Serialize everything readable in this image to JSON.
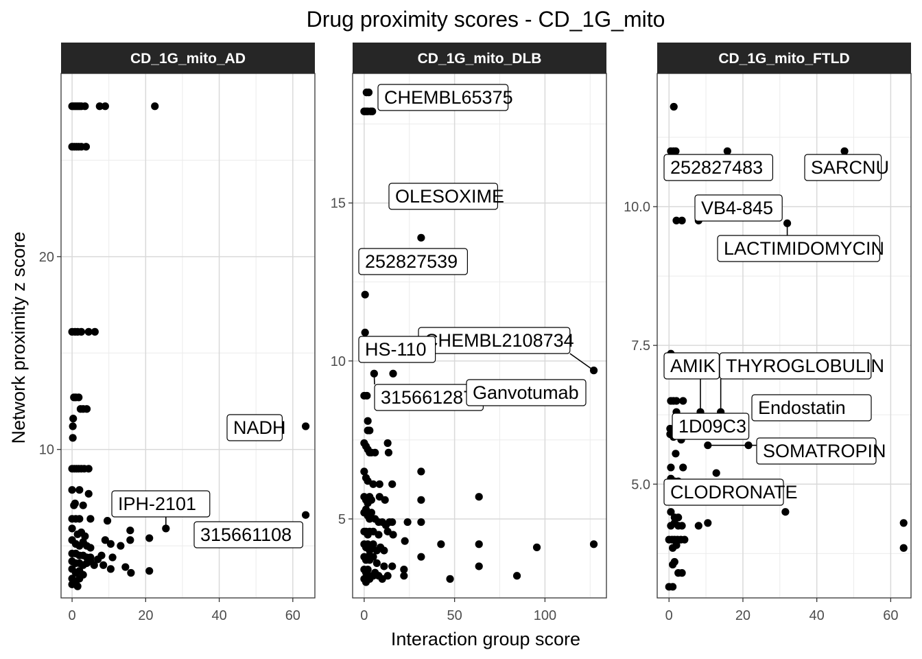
{
  "chart_data": {
    "type": "scatter",
    "title": "Drug proximity scores - CD_1G_mito",
    "xlabel": "Interaction group score",
    "ylabel": "Network proximity z score",
    "grid": true,
    "panels": [
      {
        "name": "CD_1G_mito_AD",
        "xlim": [
          -3,
          66
        ],
        "ylim": [
          2.3,
          29.5
        ],
        "xticks": [
          0,
          20,
          40,
          60
        ],
        "yticks": [
          10,
          20
        ],
        "points": [
          [
            0,
            27.8
          ],
          [
            0.5,
            27.8
          ],
          [
            1,
            27.8
          ],
          [
            1.5,
            27.8
          ],
          [
            2,
            27.8
          ],
          [
            2.5,
            27.8
          ],
          [
            3.5,
            27.8
          ],
          [
            7.5,
            27.8
          ],
          [
            9,
            27.8
          ],
          [
            22.5,
            27.8
          ],
          [
            0,
            25.7
          ],
          [
            0.6,
            25.7
          ],
          [
            1.2,
            25.7
          ],
          [
            1.8,
            25.7
          ],
          [
            2.5,
            25.7
          ],
          [
            3.8,
            25.7
          ],
          [
            0,
            16.1
          ],
          [
            0.8,
            16.1
          ],
          [
            1.5,
            16.1
          ],
          [
            2.5,
            16.1
          ],
          [
            4.5,
            16.1
          ],
          [
            6.2,
            16.1
          ],
          [
            0.5,
            12.7
          ],
          [
            1,
            12.7
          ],
          [
            1.8,
            12.7
          ],
          [
            2.3,
            12.1
          ],
          [
            3,
            12.1
          ],
          [
            4,
            12.1
          ],
          [
            0.3,
            11.6
          ],
          [
            0.2,
            11.2
          ],
          [
            0.2,
            10.6
          ],
          [
            0,
            9
          ],
          [
            0.6,
            9
          ],
          [
            1.2,
            9
          ],
          [
            1.8,
            9
          ],
          [
            2.5,
            9
          ],
          [
            3.3,
            9
          ],
          [
            4.5,
            9
          ],
          [
            0,
            7.9
          ],
          [
            2,
            7.9
          ],
          [
            4.5,
            7.7
          ],
          [
            0.8,
            7.2
          ],
          [
            0.5,
            7.1
          ],
          [
            3,
            7.1
          ],
          [
            0,
            6.4
          ],
          [
            1,
            6.4
          ],
          [
            2,
            6.4
          ],
          [
            5,
            6.4
          ],
          [
            9.6,
            6.3
          ],
          [
            0,
            5.9
          ],
          [
            1.5,
            5.6
          ],
          [
            2.5,
            5.7
          ],
          [
            3.5,
            5.5
          ],
          [
            15.8,
            5.8
          ],
          [
            25.5,
            5.9
          ],
          [
            63.5,
            6.6
          ],
          [
            0,
            5.3
          ],
          [
            1,
            5.1
          ],
          [
            2,
            5
          ],
          [
            3,
            5.2
          ],
          [
            4,
            5
          ],
          [
            5,
            4.9
          ],
          [
            9,
            5.3
          ],
          [
            10.5,
            5.1
          ],
          [
            13.2,
            5
          ],
          [
            15.8,
            5.3
          ],
          [
            21,
            5.4
          ],
          [
            0,
            4.6
          ],
          [
            1,
            4.6
          ],
          [
            2,
            4.5
          ],
          [
            3,
            4.5
          ],
          [
            4,
            4.4
          ],
          [
            5,
            4.4
          ],
          [
            7,
            4.3
          ],
          [
            8,
            4.5
          ],
          [
            11,
            4.4
          ],
          [
            0,
            4.2
          ],
          [
            1,
            4.1
          ],
          [
            2,
            4.1
          ],
          [
            3,
            4
          ],
          [
            4,
            4.1
          ],
          [
            5,
            4.2
          ],
          [
            6,
            4
          ],
          [
            8.5,
            4
          ],
          [
            10.5,
            3.8
          ],
          [
            14.5,
            3.9
          ],
          [
            16,
            3.6
          ],
          [
            21,
            3.7
          ],
          [
            0,
            3.8
          ],
          [
            1,
            3.6
          ],
          [
            2,
            3.7
          ],
          [
            3,
            3.5
          ],
          [
            0,
            3.3
          ],
          [
            1,
            3.1
          ],
          [
            2,
            3.3
          ],
          [
            1.5,
            2.9
          ],
          [
            0,
            3
          ],
          [
            63.5,
            11.2
          ]
        ],
        "labels": [
          {
            "text": "NADH",
            "x": 63.5,
            "y": 11.2
          },
          {
            "text": "IPH-2101",
            "x": 25.5,
            "y": 5.9
          },
          {
            "text": "315661108",
            "x": 63.5,
            "y": 6.6
          }
        ]
      },
      {
        "name": "CD_1G_mito_DLB",
        "xlim": [
          -6.4,
          134
        ],
        "ylim": [
          2.5,
          19.1
        ],
        "xticks": [
          0,
          50,
          100
        ],
        "yticks": [
          5,
          10,
          15
        ],
        "points": [
          [
            1.3,
            18.5
          ],
          [
            2.5,
            18.5
          ],
          [
            0,
            17.9
          ],
          [
            1,
            17.9
          ],
          [
            2,
            17.9
          ],
          [
            3.5,
            17.9
          ],
          [
            4.5,
            17.9
          ],
          [
            31.5,
            13.9
          ],
          [
            0.5,
            12.1
          ],
          [
            0.5,
            10.9
          ],
          [
            5.5,
            9.6
          ],
          [
            16,
            9.6
          ],
          [
            127,
            9.7
          ],
          [
            0,
            8.9
          ],
          [
            1.5,
            8.9
          ],
          [
            2,
            8.1
          ],
          [
            2,
            7.8
          ],
          [
            3,
            7.8
          ],
          [
            0,
            7.4
          ],
          [
            1,
            7.3
          ],
          [
            2,
            7.2
          ],
          [
            3,
            7.1
          ],
          [
            4,
            7.1
          ],
          [
            6,
            7.1
          ],
          [
            13,
            7.4
          ],
          [
            13.5,
            7.1
          ],
          [
            0,
            6.5
          ],
          [
            1,
            6.3
          ],
          [
            2,
            6.2
          ],
          [
            31.5,
            6.5
          ],
          [
            5,
            6.1
          ],
          [
            8.5,
            6.1
          ],
          [
            15.5,
            6.1
          ],
          [
            0,
            5.7
          ],
          [
            1,
            5.6
          ],
          [
            2,
            5.5
          ],
          [
            3,
            5.7
          ],
          [
            4,
            5.6
          ],
          [
            8.5,
            5.7
          ],
          [
            11.5,
            5.6
          ],
          [
            31.5,
            5.6
          ],
          [
            63.5,
            5.7
          ],
          [
            0,
            5.2
          ],
          [
            1,
            5.3
          ],
          [
            2,
            5.1
          ],
          [
            3,
            5
          ],
          [
            4,
            5.2
          ],
          [
            6,
            5
          ],
          [
            8,
            4.9
          ],
          [
            10,
            4.9
          ],
          [
            12,
            4.8
          ],
          [
            14,
            4.9
          ],
          [
            15.5,
            4.9
          ],
          [
            24,
            4.9
          ],
          [
            31.5,
            4.9
          ],
          [
            0,
            4.6
          ],
          [
            1,
            4.6
          ],
          [
            2,
            4.5
          ],
          [
            3,
            4.6
          ],
          [
            5,
            4.6
          ],
          [
            8,
            4.5
          ],
          [
            13,
            4.6
          ],
          [
            16,
            4.5
          ],
          [
            0,
            4.2
          ],
          [
            1,
            4.1
          ],
          [
            2,
            4.2
          ],
          [
            3,
            4
          ],
          [
            4,
            4.1
          ],
          [
            5,
            4.2
          ],
          [
            7,
            4
          ],
          [
            9,
            4.1
          ],
          [
            11,
            4
          ],
          [
            22.5,
            4.3
          ],
          [
            42.5,
            4.2
          ],
          [
            63.5,
            4.2
          ],
          [
            95.5,
            4.1
          ],
          [
            127,
            4.2
          ],
          [
            0,
            3.8
          ],
          [
            1,
            3.7
          ],
          [
            2,
            3.8
          ],
          [
            3,
            3.7
          ],
          [
            5,
            3.8
          ],
          [
            7,
            3.6
          ],
          [
            11,
            3.5
          ],
          [
            31.5,
            3.8
          ],
          [
            0,
            3.4
          ],
          [
            1,
            3.3
          ],
          [
            2,
            3.4
          ],
          [
            3,
            3.2
          ],
          [
            6,
            3.3
          ],
          [
            8,
            3.2
          ],
          [
            15.5,
            3.5
          ],
          [
            22,
            3.4
          ],
          [
            63.5,
            3.5
          ],
          [
            0,
            3.1
          ],
          [
            1,
            3
          ],
          [
            3,
            3.1
          ],
          [
            5,
            3.2
          ],
          [
            10,
            3.1
          ],
          [
            13,
            3.2
          ],
          [
            22,
            3.2
          ],
          [
            47.5,
            3.1
          ],
          [
            84.5,
            3.2
          ]
        ],
        "labels": [
          {
            "text": "CHEMBL65375",
            "x": 2.5,
            "y": 18.5
          },
          {
            "text": "OLESOXIME",
            "x": 31.5,
            "y": 13.9
          },
          {
            "text": "252827539",
            "x": 31.5,
            "y": 13.9
          },
          {
            "text": "CHEMBL2108734",
            "x": 127,
            "y": 9.7
          },
          {
            "text": "HS-110",
            "x": 5.5,
            "y": 9.6
          },
          {
            "text": "315661287",
            "x": 5.5,
            "y": 9.6
          },
          {
            "text": "Ganvotumab",
            "x": 16,
            "y": 9.6
          }
        ]
      },
      {
        "name": "CD_1G_mito_FTLD",
        "xlim": [
          -3.2,
          65.5
        ],
        "ylim": [
          2.95,
          12.4
        ],
        "xticks": [
          0,
          20,
          40,
          60
        ],
        "yticks": [
          5.0,
          7.5,
          10.0
        ],
        "points": [
          [
            1.3,
            11.8
          ],
          [
            0.5,
            11
          ],
          [
            1.2,
            11
          ],
          [
            1.8,
            11
          ],
          [
            15.8,
            11
          ],
          [
            47.5,
            11
          ],
          [
            2,
            9.75
          ],
          [
            3.5,
            9.75
          ],
          [
            8,
            9.75
          ],
          [
            32,
            9.7
          ],
          [
            0.5,
            7.35
          ],
          [
            0.5,
            6.5
          ],
          [
            1.2,
            6.5
          ],
          [
            2,
            6.5
          ],
          [
            3.8,
            6.5
          ],
          [
            2,
            6.3
          ],
          [
            8.5,
            6.3
          ],
          [
            14,
            6.3
          ],
          [
            0.3,
            6
          ],
          [
            0.3,
            5.9
          ],
          [
            1.2,
            5.85
          ],
          [
            3.3,
            5.8
          ],
          [
            4,
            5.9
          ],
          [
            1.8,
            5.55
          ],
          [
            10.5,
            5.7
          ],
          [
            21.5,
            5.7
          ],
          [
            0.5,
            5.3
          ],
          [
            3.8,
            5.3
          ],
          [
            12.8,
            5.2
          ],
          [
            0.5,
            5.1
          ],
          [
            1.5,
            5.05
          ],
          [
            2.5,
            5.05
          ],
          [
            0.5,
            4.5
          ],
          [
            1.5,
            4.4
          ],
          [
            2.5,
            4.4
          ],
          [
            31.5,
            4.5
          ],
          [
            0.5,
            4.25
          ],
          [
            1.5,
            4.3
          ],
          [
            2.5,
            4.25
          ],
          [
            3.5,
            4.25
          ],
          [
            8,
            4.25
          ],
          [
            10.5,
            4.3
          ],
          [
            0,
            4
          ],
          [
            0.8,
            4
          ],
          [
            1.5,
            4
          ],
          [
            2.3,
            4
          ],
          [
            3.2,
            4
          ],
          [
            4.2,
            4
          ],
          [
            1,
            3.85
          ],
          [
            2,
            3.9
          ],
          [
            1.5,
            3.6
          ],
          [
            1,
            3.55
          ],
          [
            2.5,
            3.4
          ],
          [
            3.5,
            3.4
          ],
          [
            0,
            3.15
          ],
          [
            1,
            3.15
          ],
          [
            63.5,
            4.3
          ],
          [
            63.5,
            3.85
          ]
        ],
        "labels": [
          {
            "text": "252827483",
            "x": 1.2,
            "y": 11
          },
          {
            "text": "SARCNU",
            "x": 47.5,
            "y": 11
          },
          {
            "text": "VB4-845",
            "x": 8,
            "y": 9.75
          },
          {
            "text": "LACTIMIDOMYCIN",
            "x": 32,
            "y": 9.7
          },
          {
            "text": "AMIK",
            "x": 8.5,
            "y": 6.3
          },
          {
            "text": "THYROGLOBULIN",
            "x": 14,
            "y": 6.3
          },
          {
            "text": "Endostatin",
            "x": 21.5,
            "y": 5.7
          },
          {
            "text": "1D09C3",
            "x": 3.3,
            "y": 5.8
          },
          {
            "text": "SOMATROPIN",
            "x": 10.5,
            "y": 5.7
          },
          {
            "text": "CLODRONATE",
            "x": 1.5,
            "y": 4.4
          }
        ]
      }
    ]
  }
}
